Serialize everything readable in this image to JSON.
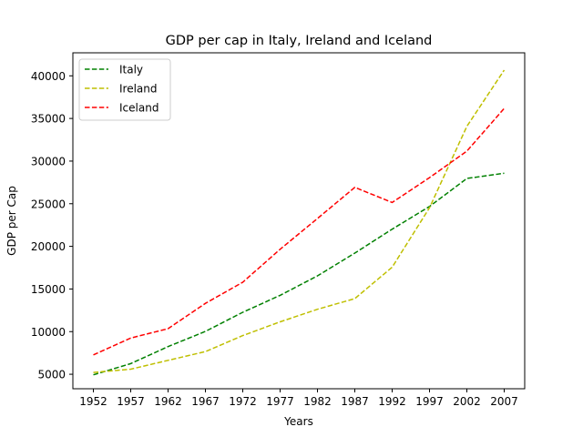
{
  "chart_data": {
    "type": "line",
    "title": "GDP per cap in Italy, Ireland and Iceland",
    "xlabel": "Years",
    "ylabel": "GDP per Cap",
    "x": [
      1952,
      1957,
      1962,
      1967,
      1972,
      1977,
      1982,
      1987,
      1992,
      1997,
      2002,
      2007
    ],
    "yticks": [
      5000,
      10000,
      15000,
      20000,
      25000,
      30000,
      35000,
      40000
    ],
    "ylim": [
      3300,
      42700
    ],
    "grid": false,
    "legend_position": "top-left",
    "line_style": "dashed",
    "series": [
      {
        "name": "Italy",
        "color": "#008000",
        "values": [
          4931,
          6249,
          8244,
          10022,
          12269,
          14256,
          16537,
          19208,
          22014,
          24675,
          27968,
          28570
        ]
      },
      {
        "name": "Ireland",
        "color": "#bfbf00",
        "values": [
          5211,
          5599,
          6632,
          7656,
          9531,
          11151,
          12618,
          13872,
          17559,
          24522,
          34077,
          40676
        ]
      },
      {
        "name": "Iceland",
        "color": "#ff0000",
        "values": [
          7268,
          9244,
          10350,
          13320,
          15798,
          19655,
          23270,
          26923,
          25144,
          28061,
          31163,
          36181
        ]
      }
    ]
  }
}
